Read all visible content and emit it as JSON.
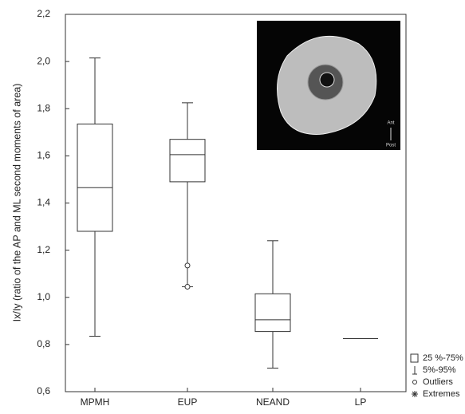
{
  "chart_data": {
    "type": "box",
    "y_label": "Ix/Iy (ratio of the AP and ML second moments of area)",
    "categories": [
      "MPMH",
      "EUP",
      "NEAND",
      "LP"
    ],
    "boxes": [
      {
        "whisker_high": 2.015,
        "q3": 1.735,
        "median": 1.465,
        "q1": 1.28,
        "whisker_low": 0.835,
        "outliers": []
      },
      {
        "whisker_high": 1.825,
        "q3": 1.67,
        "median": 1.605,
        "q1": 1.49,
        "whisker_low": 1.045,
        "outliers": [
          1.135,
          1.045
        ]
      },
      {
        "whisker_high": 1.24,
        "q3": 1.015,
        "median": 0.905,
        "q1": 0.855,
        "whisker_low": 0.7,
        "outliers": []
      },
      {
        "whisker_high": null,
        "q3": null,
        "median": 0.825,
        "q1": null,
        "whisker_low": null,
        "outliers": []
      }
    ],
    "ylim": [
      0.6,
      2.2
    ],
    "yticks": [
      {
        "value": 0.6,
        "label": "0,6"
      },
      {
        "value": 0.8,
        "label": "0,8"
      },
      {
        "value": 1.0,
        "label": "1,0"
      },
      {
        "value": 1.2,
        "label": "1,2"
      },
      {
        "value": 1.4,
        "label": "1,4"
      },
      {
        "value": 1.6,
        "label": "1,6"
      },
      {
        "value": 1.8,
        "label": "1,8"
      },
      {
        "value": 2.0,
        "label": "2,0"
      },
      {
        "value": 2.2,
        "label": "2,2"
      }
    ],
    "legend": [
      "25 %-75%",
      "5%-95%",
      "Outliers",
      "Extremes"
    ],
    "annotations": [
      "Ant",
      "Post"
    ]
  }
}
